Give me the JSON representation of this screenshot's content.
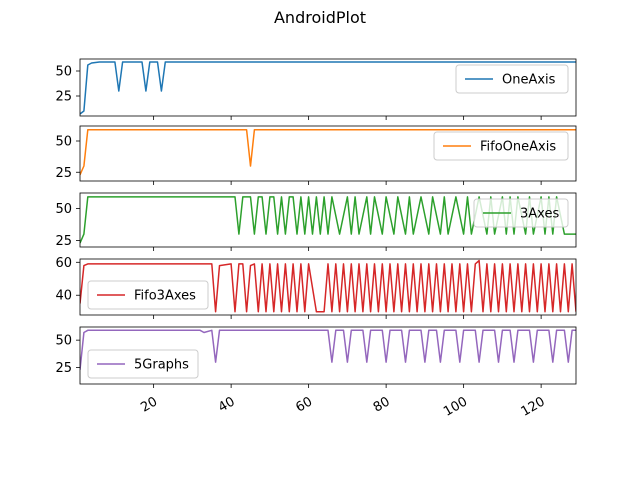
{
  "chart_data": {
    "type": "line",
    "title": "AndroidPlot",
    "xlim": [
      1,
      129
    ],
    "x_ticks": [
      20,
      40,
      60,
      80,
      100,
      120
    ],
    "x_tick_rotation": 30,
    "legend_location": "per panel",
    "panels": [
      {
        "name": "OneAxis",
        "color": "#1f77b4",
        "ylim": [
          5,
          62
        ],
        "yticks": [
          25,
          50
        ],
        "legend": "top-right",
        "segments": [
          [
            [
              1,
              7
            ],
            [
              2,
              10
            ],
            [
              3,
              56
            ],
            [
              4,
              58
            ],
            [
              6,
              59
            ],
            [
              10,
              59
            ],
            [
              11,
              30
            ],
            [
              12,
              59
            ],
            [
              17,
              59
            ],
            [
              18,
              30
            ],
            [
              19,
              59
            ],
            [
              21,
              59
            ],
            [
              22,
              30
            ],
            [
              23,
              59
            ],
            [
              129,
              59
            ]
          ]
        ]
      },
      {
        "name": "FifoOneAxis",
        "color": "#ff7f0e",
        "ylim": [
          18,
          62
        ],
        "yticks": [
          25,
          50
        ],
        "legend": "top-right",
        "segments": [
          [
            [
              1,
              23
            ],
            [
              2,
              30
            ],
            [
              3,
              59
            ],
            [
              44,
              59
            ],
            [
              45,
              30
            ],
            [
              46,
              59
            ],
            [
              129,
              59
            ]
          ]
        ]
      },
      {
        "name": "3Axes",
        "color": "#2ca02c",
        "ylim": [
          20,
          62
        ],
        "yticks": [
          25,
          50
        ],
        "legend": "top-right",
        "segments": [
          [
            [
              1,
              23
            ],
            [
              2,
              30
            ],
            [
              3,
              59
            ],
            [
              41,
              59
            ],
            [
              42,
              30
            ],
            [
              43,
              59
            ],
            [
              45,
              59
            ],
            [
              46,
              30
            ],
            [
              47,
              59
            ],
            [
              48,
              59
            ],
            [
              49,
              30
            ],
            [
              50,
              59
            ],
            [
              51,
              59
            ],
            [
              52,
              30
            ],
            [
              53,
              59
            ],
            [
              54,
              30
            ],
            [
              55,
              59
            ],
            [
              56,
              59
            ],
            [
              57,
              30
            ],
            [
              58,
              59
            ],
            [
              59,
              30
            ],
            [
              60,
              59
            ],
            [
              61,
              30
            ],
            [
              62,
              59
            ],
            [
              63,
              30
            ],
            [
              64,
              59
            ],
            [
              65,
              30
            ],
            [
              66,
              59
            ],
            [
              68,
              30
            ],
            [
              70,
              59
            ],
            [
              71,
              30
            ],
            [
              72,
              59
            ],
            [
              73,
              30
            ],
            [
              75,
              59
            ],
            [
              76,
              30
            ],
            [
              77,
              59
            ],
            [
              79,
              30
            ],
            [
              80,
              59
            ],
            [
              82,
              30
            ],
            [
              83,
              59
            ],
            [
              85,
              30
            ],
            [
              86,
              59
            ],
            [
              87,
              30
            ],
            [
              89,
              59
            ],
            [
              91,
              30
            ],
            [
              92,
              59
            ],
            [
              94,
              30
            ],
            [
              95,
              59
            ],
            [
              96,
              30
            ],
            [
              98,
              59
            ],
            [
              100,
              30
            ],
            [
              101,
              59
            ],
            [
              102,
              30
            ],
            [
              104,
              59
            ],
            [
              106,
              30
            ],
            [
              107,
              59
            ],
            [
              108,
              30
            ],
            [
              110,
              59
            ],
            [
              111,
              30
            ],
            [
              112,
              59
            ],
            [
              113,
              30
            ],
            [
              114,
              59
            ],
            [
              116,
              30
            ],
            [
              117,
              59
            ],
            [
              118,
              30
            ],
            [
              120,
              59
            ],
            [
              121,
              30
            ],
            [
              122,
              59
            ],
            [
              123,
              30
            ],
            [
              124,
              59
            ],
            [
              126,
              30
            ],
            [
              129,
              30
            ]
          ]
        ]
      },
      {
        "name": "Fifo3Axes",
        "color": "#d62728",
        "ylim": [
          28,
          62
        ],
        "yticks": [
          40,
          60
        ],
        "legend": "bottom-left",
        "segments": [
          [
            [
              1,
              35
            ],
            [
              2,
              58
            ],
            [
              3,
              59
            ],
            [
              35,
              59
            ],
            [
              36,
              30
            ],
            [
              37,
              58
            ],
            [
              40,
              59
            ],
            [
              41,
              30
            ],
            [
              42,
              59
            ],
            [
              43,
              59
            ],
            [
              44,
              30
            ],
            [
              45,
              58
            ],
            [
              46,
              59
            ],
            [
              47,
              30
            ],
            [
              48,
              59
            ],
            [
              49,
              30
            ],
            [
              50,
              59
            ],
            [
              51,
              30
            ],
            [
              52,
              59
            ],
            [
              53,
              30
            ],
            [
              54,
              59
            ],
            [
              55,
              30
            ],
            [
              56,
              59
            ],
            [
              57,
              30
            ],
            [
              58,
              59
            ],
            [
              59,
              30
            ],
            [
              60,
              59
            ],
            [
              62,
              30
            ],
            [
              64,
              30
            ],
            [
              65,
              59
            ],
            [
              66,
              30
            ],
            [
              67,
              59
            ],
            [
              68,
              30
            ],
            [
              69,
              59
            ],
            [
              70,
              30
            ],
            [
              71,
              59
            ],
            [
              72,
              30
            ],
            [
              73,
              59
            ],
            [
              74,
              30
            ],
            [
              75,
              59
            ],
            [
              76,
              30
            ],
            [
              77,
              59
            ],
            [
              78,
              30
            ],
            [
              79,
              59
            ],
            [
              80,
              30
            ],
            [
              81,
              59
            ],
            [
              82,
              30
            ],
            [
              83,
              59
            ],
            [
              84,
              30
            ],
            [
              85,
              59
            ],
            [
              86,
              30
            ],
            [
              87,
              59
            ],
            [
              88,
              30
            ],
            [
              89,
              59
            ],
            [
              90,
              30
            ],
            [
              91,
              59
            ],
            [
              92,
              30
            ],
            [
              93,
              59
            ],
            [
              94,
              30
            ],
            [
              95,
              59
            ],
            [
              96,
              30
            ],
            [
              97,
              59
            ],
            [
              98,
              30
            ],
            [
              99,
              59
            ],
            [
              100,
              30
            ],
            [
              101,
              59
            ],
            [
              102,
              30
            ],
            [
              103,
              59
            ],
            [
              104,
              61
            ],
            [
              105,
              30
            ],
            [
              106,
              59
            ],
            [
              107,
              30
            ],
            [
              108,
              59
            ],
            [
              109,
              30
            ],
            [
              110,
              59
            ],
            [
              111,
              30
            ],
            [
              112,
              59
            ],
            [
              113,
              30
            ],
            [
              114,
              59
            ],
            [
              115,
              30
            ],
            [
              116,
              59
            ],
            [
              117,
              30
            ],
            [
              118,
              59
            ],
            [
              119,
              30
            ],
            [
              120,
              59
            ],
            [
              121,
              30
            ],
            [
              122,
              59
            ],
            [
              123,
              30
            ],
            [
              124,
              59
            ],
            [
              125,
              30
            ],
            [
              126,
              59
            ],
            [
              127,
              30
            ],
            [
              128,
              59
            ],
            [
              129,
              30
            ]
          ]
        ]
      },
      {
        "name": "5Graphs",
        "color": "#9467bd",
        "ylim": [
          10,
          62
        ],
        "yticks": [
          25,
          50
        ],
        "legend": "bottom-left",
        "segments": [
          [
            [
              1,
              23
            ],
            [
              2,
              57
            ],
            [
              3,
              59
            ],
            [
              32,
              59
            ],
            [
              33,
              57
            ],
            [
              35,
              59
            ],
            [
              36,
              30
            ],
            [
              37,
              59
            ],
            [
              65,
              59
            ],
            [
              66,
              30
            ],
            [
              67,
              59
            ],
            [
              69,
              59
            ],
            [
              70,
              30
            ],
            [
              71,
              59
            ],
            [
              74,
              59
            ],
            [
              75,
              30
            ],
            [
              76,
              59
            ],
            [
              79,
              59
            ],
            [
              80,
              30
            ],
            [
              81,
              59
            ],
            [
              84,
              59
            ],
            [
              85,
              30
            ],
            [
              86,
              59
            ],
            [
              89,
              59
            ],
            [
              90,
              30
            ],
            [
              91,
              59
            ],
            [
              93,
              59
            ],
            [
              94,
              30
            ],
            [
              95,
              59
            ],
            [
              98,
              59
            ],
            [
              99,
              30
            ],
            [
              100,
              59
            ],
            [
              103,
              59
            ],
            [
              104,
              30
            ],
            [
              105,
              59
            ],
            [
              108,
              59
            ],
            [
              109,
              30
            ],
            [
              110,
              59
            ],
            [
              112,
              59
            ],
            [
              113,
              30
            ],
            [
              114,
              59
            ],
            [
              117,
              59
            ],
            [
              118,
              30
            ],
            [
              119,
              59
            ],
            [
              122,
              59
            ],
            [
              123,
              30
            ],
            [
              124,
              59
            ],
            [
              126,
              59
            ],
            [
              127,
              30
            ],
            [
              128,
              59
            ],
            [
              129,
              59
            ]
          ]
        ]
      }
    ]
  }
}
